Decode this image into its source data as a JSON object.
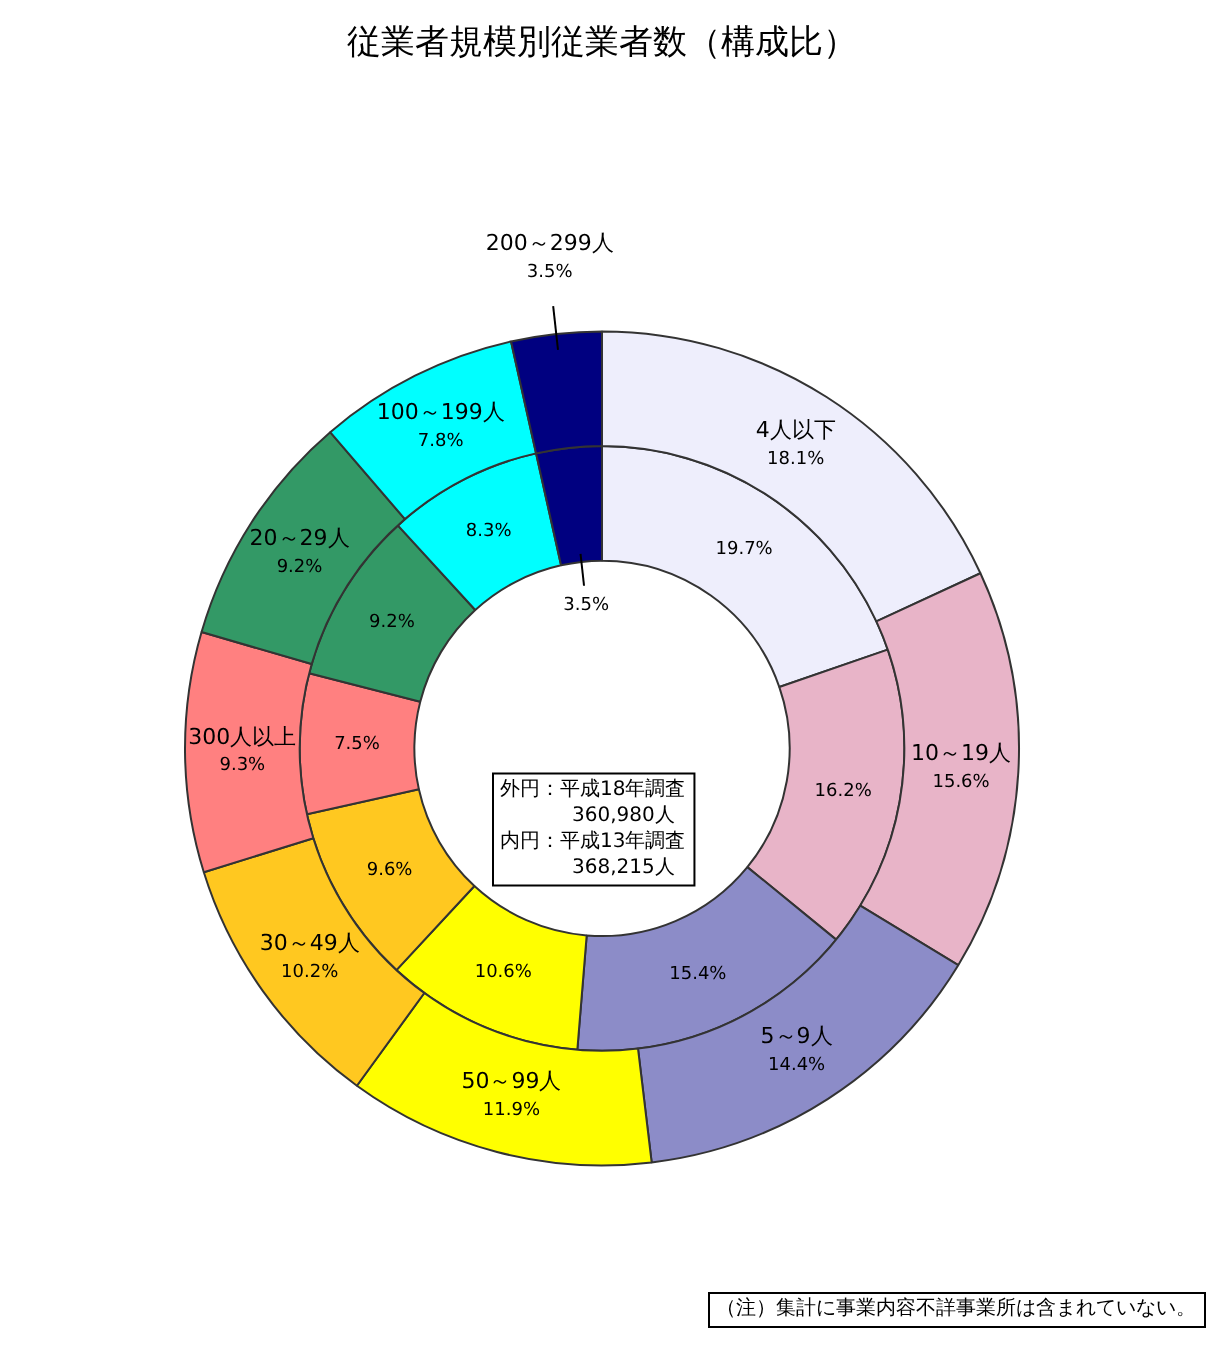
{
  "chart_data": {
    "type": "donut",
    "title": "従業者規模別従業者数（構成比）",
    "categories": [
      "4人以下",
      "10～19人",
      "5～9人",
      "50～99人",
      "30～49人",
      "300人以上",
      "20～29人",
      "100～199人",
      "200～299人"
    ],
    "colors": [
      "#eeeefc",
      "#e8b4c8",
      "#8c8cc8",
      "#ffff00",
      "#ffc820",
      "#ff8080",
      "#339966",
      "#00ffff",
      "#000080"
    ],
    "series": [
      {
        "values": [
          18.1,
          15.6,
          14.4,
          11.9,
          10.2,
          9.3,
          9.2,
          7.8,
          3.5
        ],
        "value_labels": [
          "18.1%",
          "15.6%",
          "14.4%",
          "11.9%",
          "10.2%",
          "9.3%",
          "9.2%",
          "7.8%",
          "3.5%"
        ]
      },
      {
        "values": [
          19.7,
          16.2,
          15.4,
          10.6,
          9.6,
          7.5,
          9.2,
          8.3,
          3.5
        ],
        "value_labels": [
          "19.7%",
          "16.2%",
          "15.4%",
          "10.6%",
          "9.6%",
          "7.5%",
          "9.2%",
          "8.3%",
          "3.5%"
        ]
      }
    ],
    "annotations": [
      "外円：平成18年調査",
      "360,980人",
      "内円：平成13年調査",
      "368,215人",
      "（注）集計に事業内容不詳事業所は含まれていない。"
    ],
    "legend": false
  }
}
